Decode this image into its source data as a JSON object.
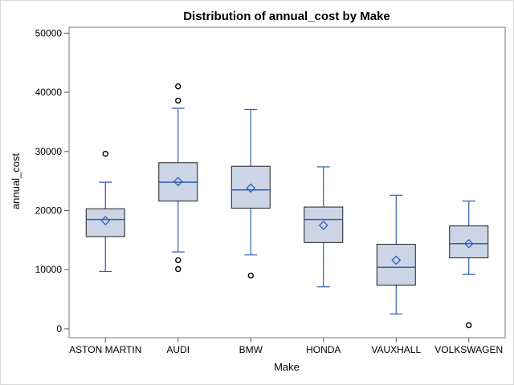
{
  "chart_data": {
    "type": "boxplot",
    "title": "Distribution of annual_cost by Make",
    "xlabel": "Make",
    "ylabel": "annual_cost",
    "ylim": [
      -1500,
      51000
    ],
    "yticks": [
      0,
      10000,
      20000,
      30000,
      40000,
      50000
    ],
    "grid": false,
    "colors": {
      "box_fill": "#cbd5e6",
      "line": "#2f5fb3",
      "box_border": "#1f1f1f",
      "outlier": "#000000"
    },
    "categories": [
      "ASTON MARTIN",
      "AUDI",
      "BMW",
      "HONDA",
      "VAUXHALL",
      "VOLKSWAGEN"
    ],
    "boxes": [
      {
        "category": "ASTON MARTIN",
        "whisker_low": 9700,
        "q1": 15600,
        "median": 18500,
        "mean": 18300,
        "q3": 20300,
        "whisker_high": 24800,
        "outliers": [
          29600
        ]
      },
      {
        "category": "AUDI",
        "whisker_low": 13000,
        "q1": 21600,
        "median": 24800,
        "mean": 24900,
        "q3": 28100,
        "whisker_high": 37300,
        "outliers": [
          10100,
          11600,
          38600,
          41000
        ]
      },
      {
        "category": "BMW",
        "whisker_low": 12500,
        "q1": 20400,
        "median": 23500,
        "mean": 23800,
        "q3": 27500,
        "whisker_high": 37100,
        "outliers": [
          9000
        ]
      },
      {
        "category": "HONDA",
        "whisker_low": 7100,
        "q1": 14600,
        "median": 18500,
        "mean": 17500,
        "q3": 20600,
        "whisker_high": 27400,
        "outliers": []
      },
      {
        "category": "VAUXHALL",
        "whisker_low": 2500,
        "q1": 7400,
        "median": 10400,
        "mean": 11600,
        "q3": 14300,
        "whisker_high": 22600,
        "outliers": []
      },
      {
        "category": "VOLKSWAGEN",
        "whisker_low": 9200,
        "q1": 12000,
        "median": 14400,
        "mean": 14400,
        "q3": 17400,
        "whisker_high": 21600,
        "outliers": [
          600
        ]
      }
    ]
  }
}
